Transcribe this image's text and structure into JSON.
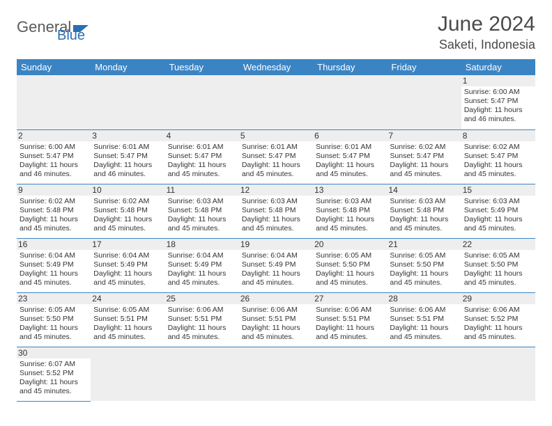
{
  "brand": {
    "part1": "General",
    "part2": "Blue"
  },
  "title": "June 2024",
  "location": "Saketi, Indonesia",
  "colors": {
    "header_bg": "#3b84c4",
    "header_text": "#ffffff",
    "row_divider": "#3b84c4",
    "daynum_bg": "#eeeeee",
    "brand_gray": "#5a5a5a",
    "brand_blue": "#2b6fb3"
  },
  "weekdays": [
    "Sunday",
    "Monday",
    "Tuesday",
    "Wednesday",
    "Thursday",
    "Friday",
    "Saturday"
  ],
  "weeks": [
    [
      null,
      null,
      null,
      null,
      null,
      null,
      {
        "d": "1",
        "sr": "6:00 AM",
        "ss": "5:47 PM",
        "dl": "11 hours and 46 minutes."
      }
    ],
    [
      {
        "d": "2",
        "sr": "6:00 AM",
        "ss": "5:47 PM",
        "dl": "11 hours and 46 minutes."
      },
      {
        "d": "3",
        "sr": "6:01 AM",
        "ss": "5:47 PM",
        "dl": "11 hours and 46 minutes."
      },
      {
        "d": "4",
        "sr": "6:01 AM",
        "ss": "5:47 PM",
        "dl": "11 hours and 45 minutes."
      },
      {
        "d": "5",
        "sr": "6:01 AM",
        "ss": "5:47 PM",
        "dl": "11 hours and 45 minutes."
      },
      {
        "d": "6",
        "sr": "6:01 AM",
        "ss": "5:47 PM",
        "dl": "11 hours and 45 minutes."
      },
      {
        "d": "7",
        "sr": "6:02 AM",
        "ss": "5:47 PM",
        "dl": "11 hours and 45 minutes."
      },
      {
        "d": "8",
        "sr": "6:02 AM",
        "ss": "5:47 PM",
        "dl": "11 hours and 45 minutes."
      }
    ],
    [
      {
        "d": "9",
        "sr": "6:02 AM",
        "ss": "5:48 PM",
        "dl": "11 hours and 45 minutes."
      },
      {
        "d": "10",
        "sr": "6:02 AM",
        "ss": "5:48 PM",
        "dl": "11 hours and 45 minutes."
      },
      {
        "d": "11",
        "sr": "6:03 AM",
        "ss": "5:48 PM",
        "dl": "11 hours and 45 minutes."
      },
      {
        "d": "12",
        "sr": "6:03 AM",
        "ss": "5:48 PM",
        "dl": "11 hours and 45 minutes."
      },
      {
        "d": "13",
        "sr": "6:03 AM",
        "ss": "5:48 PM",
        "dl": "11 hours and 45 minutes."
      },
      {
        "d": "14",
        "sr": "6:03 AM",
        "ss": "5:48 PM",
        "dl": "11 hours and 45 minutes."
      },
      {
        "d": "15",
        "sr": "6:03 AM",
        "ss": "5:49 PM",
        "dl": "11 hours and 45 minutes."
      }
    ],
    [
      {
        "d": "16",
        "sr": "6:04 AM",
        "ss": "5:49 PM",
        "dl": "11 hours and 45 minutes."
      },
      {
        "d": "17",
        "sr": "6:04 AM",
        "ss": "5:49 PM",
        "dl": "11 hours and 45 minutes."
      },
      {
        "d": "18",
        "sr": "6:04 AM",
        "ss": "5:49 PM",
        "dl": "11 hours and 45 minutes."
      },
      {
        "d": "19",
        "sr": "6:04 AM",
        "ss": "5:49 PM",
        "dl": "11 hours and 45 minutes."
      },
      {
        "d": "20",
        "sr": "6:05 AM",
        "ss": "5:50 PM",
        "dl": "11 hours and 45 minutes."
      },
      {
        "d": "21",
        "sr": "6:05 AM",
        "ss": "5:50 PM",
        "dl": "11 hours and 45 minutes."
      },
      {
        "d": "22",
        "sr": "6:05 AM",
        "ss": "5:50 PM",
        "dl": "11 hours and 45 minutes."
      }
    ],
    [
      {
        "d": "23",
        "sr": "6:05 AM",
        "ss": "5:50 PM",
        "dl": "11 hours and 45 minutes."
      },
      {
        "d": "24",
        "sr": "6:05 AM",
        "ss": "5:51 PM",
        "dl": "11 hours and 45 minutes."
      },
      {
        "d": "25",
        "sr": "6:06 AM",
        "ss": "5:51 PM",
        "dl": "11 hours and 45 minutes."
      },
      {
        "d": "26",
        "sr": "6:06 AM",
        "ss": "5:51 PM",
        "dl": "11 hours and 45 minutes."
      },
      {
        "d": "27",
        "sr": "6:06 AM",
        "ss": "5:51 PM",
        "dl": "11 hours and 45 minutes."
      },
      {
        "d": "28",
        "sr": "6:06 AM",
        "ss": "5:51 PM",
        "dl": "11 hours and 45 minutes."
      },
      {
        "d": "29",
        "sr": "6:06 AM",
        "ss": "5:52 PM",
        "dl": "11 hours and 45 minutes."
      }
    ],
    [
      {
        "d": "30",
        "sr": "6:07 AM",
        "ss": "5:52 PM",
        "dl": "11 hours and 45 minutes."
      },
      null,
      null,
      null,
      null,
      null,
      null
    ]
  ],
  "labels": {
    "sunrise": "Sunrise:",
    "sunset": "Sunset:",
    "daylight": "Daylight:"
  }
}
